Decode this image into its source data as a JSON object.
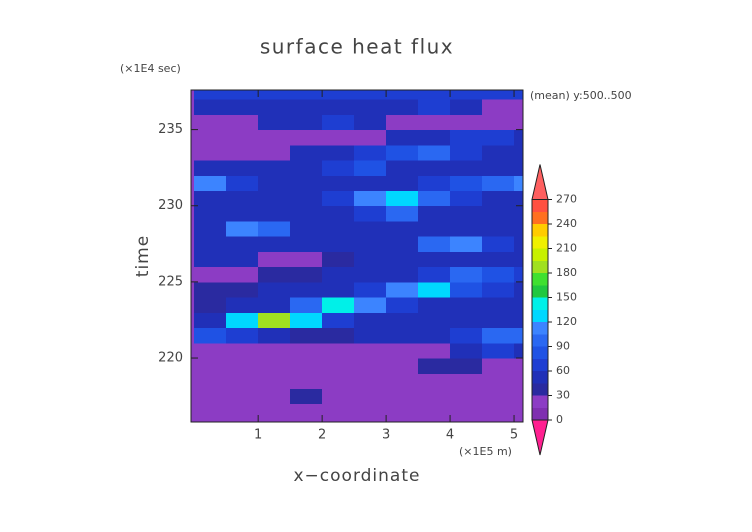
{
  "chart_data": {
    "type": "contour",
    "title": "surface heat flux",
    "subtitle": "(mean) y:500..500",
    "x_label": "x−coordinate",
    "x_unit": "(×1E5 m)",
    "y_label": "time",
    "y_unit": "(×1E4 sec)",
    "xlim": [
      -0.05,
      5.14
    ],
    "xticks": [
      1,
      2,
      3,
      4,
      5
    ],
    "ylim": [
      215.8,
      237.6
    ],
    "yticks": [
      220,
      225,
      230,
      235
    ],
    "x": [
      0,
      0.5,
      1,
      1.5,
      2,
      2.5,
      3,
      3.5,
      4,
      4.5,
      5
    ],
    "y": [
      216,
      217,
      218,
      219,
      220,
      221,
      222,
      223,
      224,
      225,
      226,
      227,
      228,
      229,
      230,
      231,
      232,
      233,
      234,
      235,
      236,
      237
    ],
    "z": [
      [
        20,
        20,
        20,
        20,
        20,
        20,
        20,
        20,
        20,
        20,
        20
      ],
      [
        20,
        20,
        20,
        35,
        20,
        20,
        20,
        20,
        20,
        20,
        20
      ],
      [
        20,
        20,
        20,
        20,
        20,
        20,
        20,
        20,
        20,
        20,
        20
      ],
      [
        20,
        20,
        20,
        20,
        20,
        20,
        20,
        40,
        40,
        20,
        20
      ],
      [
        20,
        20,
        20,
        20,
        20,
        20,
        20,
        20,
        45,
        60,
        45
      ],
      [
        80,
        60,
        45,
        40,
        40,
        45,
        45,
        45,
        60,
        100,
        90
      ],
      [
        45,
        130,
        180,
        120,
        60,
        45,
        45,
        45,
        45,
        45,
        45
      ],
      [
        40,
        45,
        45,
        100,
        140,
        110,
        60,
        45,
        45,
        45,
        45
      ],
      [
        40,
        40,
        45,
        45,
        45,
        60,
        110,
        120,
        80,
        60,
        45
      ],
      [
        20,
        20,
        40,
        40,
        45,
        45,
        45,
        60,
        90,
        80,
        60
      ],
      [
        45,
        45,
        20,
        20,
        40,
        45,
        45,
        45,
        45,
        45,
        45
      ],
      [
        45,
        45,
        45,
        45,
        45,
        45,
        45,
        90,
        110,
        60,
        45
      ],
      [
        45,
        110,
        90,
        45,
        45,
        45,
        45,
        45,
        45,
        45,
        45
      ],
      [
        45,
        45,
        45,
        45,
        45,
        60,
        90,
        45,
        45,
        45,
        45
      ],
      [
        45,
        45,
        45,
        45,
        60,
        110,
        120,
        100,
        60,
        45,
        45
      ],
      [
        110,
        60,
        45,
        45,
        45,
        45,
        45,
        60,
        80,
        100,
        110
      ],
      [
        45,
        45,
        45,
        45,
        60,
        80,
        45,
        45,
        45,
        45,
        45
      ],
      [
        20,
        20,
        20,
        45,
        45,
        60,
        80,
        90,
        60,
        45,
        45
      ],
      [
        20,
        20,
        20,
        20,
        20,
        20,
        45,
        45,
        60,
        60,
        45
      ],
      [
        20,
        20,
        45,
        45,
        60,
        45,
        20,
        20,
        20,
        20,
        20
      ],
      [
        45,
        45,
        45,
        45,
        45,
        45,
        45,
        60,
        45,
        20,
        20
      ],
      [
        60,
        60,
        60,
        60,
        60,
        60,
        60,
        60,
        60,
        60,
        60
      ]
    ],
    "levels": [
      0,
      15,
      30,
      45,
      60,
      75,
      90,
      105,
      120,
      135,
      150,
      165,
      180,
      195,
      210,
      225,
      240,
      255,
      270
    ],
    "colors": [
      "#7f2fb0",
      "#8c3cc4",
      "#2a2aa0",
      "#2030b8",
      "#1e3ed2",
      "#1f52e4",
      "#2a68f2",
      "#3c84ff",
      "#00d8ff",
      "#00f0e8",
      "#20c840",
      "#40e030",
      "#a0e020",
      "#c8f000",
      "#f0f000",
      "#ffcc00",
      "#ff7020",
      "#ff5040"
    ],
    "under_color": "#ff2090",
    "over_color": "#ff6060",
    "colorbar_ticks": [
      0,
      30,
      60,
      90,
      120,
      150,
      180,
      210,
      240,
      270
    ]
  }
}
